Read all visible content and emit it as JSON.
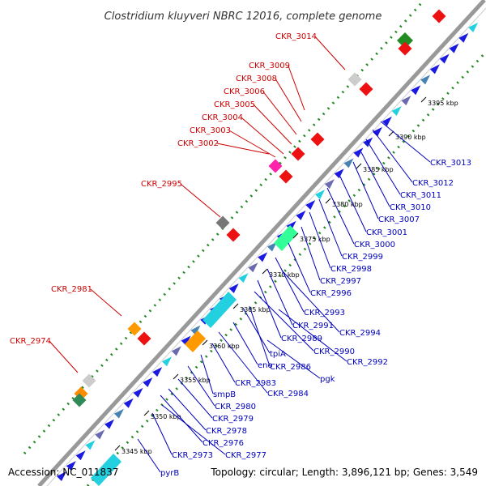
{
  "title": "Clostridium kluyveri NBRC 12016, complete genome",
  "footer": {
    "accession": "Accession: NC_011837",
    "topology": "Topology: circular; Length: 3,896,121 bp; Genes: 3,549"
  },
  "colors": {
    "left_label": "#cc0000",
    "right_label": "#0000bb",
    "backbone": "#999999",
    "dots": "#228822",
    "gene_blue": "#1a1ae0",
    "gene_cyan": "#22d0e0",
    "gene_red": "#ee1111"
  },
  "kbp_ticks": [
    "3345 kbp",
    "3350 kbp",
    "3355 kbp",
    "3360 kbp",
    "3365 kbp",
    "3370 kbp",
    "3375 kbp",
    "3380 kbp",
    "3385 kbp",
    "3390 kbp",
    "3395 kbp"
  ],
  "left_labels": [
    "CKR_3014",
    "CKR_3009",
    "CKR_3008",
    "CKR_3006",
    "CKR_3005",
    "CKR_3004",
    "CKR_3003",
    "CKR_3002",
    "CKR_2995",
    "CKR_2981",
    "CKR_2974"
  ],
  "right_labels": [
    "CKR_3013",
    "CKR_3012",
    "CKR_3011",
    "CKR_3010",
    "CKR_3007",
    "CKR_3001",
    "CKR_3000",
    "CKR_2999",
    "CKR_2998",
    "CKR_2997",
    "CKR_2996",
    "CKR_2993",
    "CKR_2991",
    "CKR_2994",
    "CKR_2989",
    "CKR_2990",
    "tpiA",
    "CKR_2992",
    "eno",
    "CKR_2986",
    "pgk",
    "CKR_2983",
    "CKR_2984",
    "smpB",
    "CKR_2980",
    "CKR_2979",
    "CKR_2978",
    "CKR_2976",
    "CKR_2973",
    "CKR_2977",
    "pyrB"
  ]
}
